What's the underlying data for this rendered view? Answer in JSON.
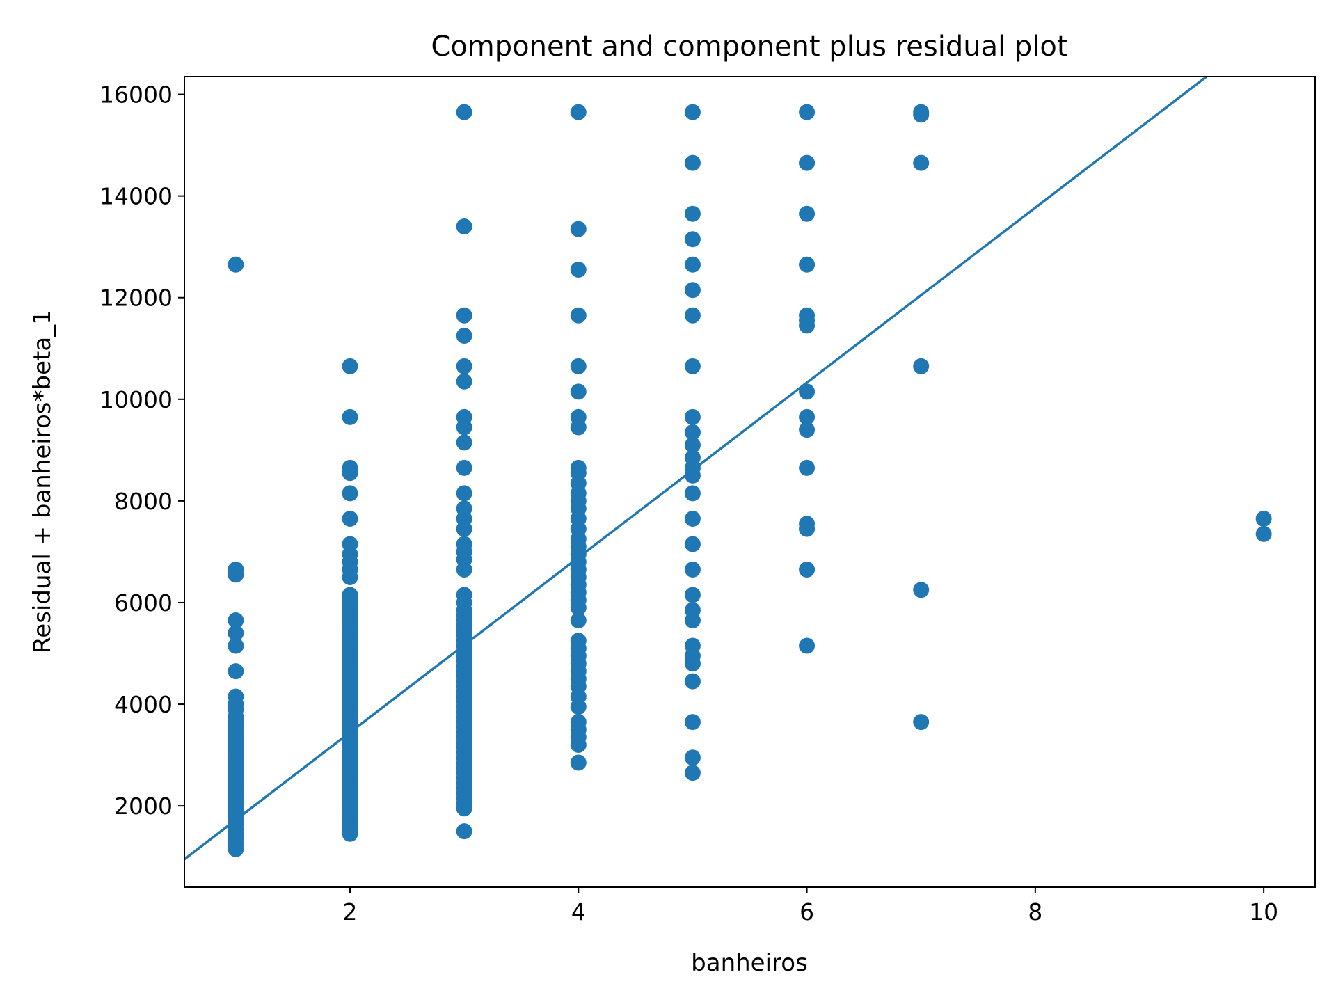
{
  "chart_data": {
    "type": "scatter",
    "title": "Component and component plus residual plot",
    "xlabel": "banheiros",
    "ylabel": "Residual + banheiros*beta_1",
    "xlim": [
      0.55,
      10.45
    ],
    "ylim": [
      400,
      16350
    ],
    "xticks": [
      2,
      4,
      6,
      8,
      10
    ],
    "yticks": [
      2000,
      4000,
      6000,
      8000,
      10000,
      12000,
      14000,
      16000
    ],
    "grid": false,
    "legend": "none",
    "colors": {
      "series": "#1f77b4",
      "axes": "#000000",
      "background": "#ffffff"
    },
    "series": [
      {
        "points": [
          [
            1,
            12650
          ],
          [
            1,
            6650
          ],
          [
            1,
            6550
          ],
          [
            1,
            5650
          ],
          [
            1,
            5400
          ],
          [
            1,
            5150
          ],
          [
            1,
            4650
          ],
          [
            1,
            4150
          ],
          [
            1,
            4000
          ],
          [
            1,
            3900
          ],
          [
            1,
            3750
          ],
          [
            1,
            3650
          ],
          [
            1,
            3550
          ],
          [
            1,
            3450
          ],
          [
            1,
            3350
          ],
          [
            1,
            3250
          ],
          [
            1,
            3150
          ],
          [
            1,
            3050
          ],
          [
            1,
            2950
          ],
          [
            1,
            2850
          ],
          [
            1,
            2750
          ],
          [
            1,
            2650
          ],
          [
            1,
            2550
          ],
          [
            1,
            2450
          ],
          [
            1,
            2350
          ],
          [
            1,
            2250
          ],
          [
            1,
            2150
          ],
          [
            1,
            2050
          ],
          [
            1,
            1950
          ],
          [
            1,
            1850
          ],
          [
            1,
            1750
          ],
          [
            1,
            1650
          ],
          [
            1,
            1550
          ],
          [
            1,
            1450
          ],
          [
            1,
            1350
          ],
          [
            1,
            1250
          ],
          [
            1,
            1150
          ],
          [
            2,
            10650
          ],
          [
            2,
            9650
          ],
          [
            2,
            8650
          ],
          [
            2,
            8550
          ],
          [
            2,
            8150
          ],
          [
            2,
            7650
          ],
          [
            2,
            7150
          ],
          [
            2,
            6950
          ],
          [
            2,
            6800
          ],
          [
            2,
            6650
          ],
          [
            2,
            6500
          ],
          [
            2,
            6150
          ],
          [
            2,
            6050
          ],
          [
            2,
            5950
          ],
          [
            2,
            5850
          ],
          [
            2,
            5750
          ],
          [
            2,
            5650
          ],
          [
            2,
            5550
          ],
          [
            2,
            5450
          ],
          [
            2,
            5350
          ],
          [
            2,
            5250
          ],
          [
            2,
            5150
          ],
          [
            2,
            5050
          ],
          [
            2,
            4950
          ],
          [
            2,
            4850
          ],
          [
            2,
            4750
          ],
          [
            2,
            4650
          ],
          [
            2,
            4550
          ],
          [
            2,
            4450
          ],
          [
            2,
            4350
          ],
          [
            2,
            4250
          ],
          [
            2,
            4150
          ],
          [
            2,
            4050
          ],
          [
            2,
            3950
          ],
          [
            2,
            3850
          ],
          [
            2,
            3750
          ],
          [
            2,
            3650
          ],
          [
            2,
            3550
          ],
          [
            2,
            3450
          ],
          [
            2,
            3350
          ],
          [
            2,
            3250
          ],
          [
            2,
            3150
          ],
          [
            2,
            3050
          ],
          [
            2,
            2950
          ],
          [
            2,
            2850
          ],
          [
            2,
            2750
          ],
          [
            2,
            2650
          ],
          [
            2,
            2550
          ],
          [
            2,
            2450
          ],
          [
            2,
            2350
          ],
          [
            2,
            2250
          ],
          [
            2,
            2150
          ],
          [
            2,
            2050
          ],
          [
            2,
            1950
          ],
          [
            2,
            1850
          ],
          [
            2,
            1750
          ],
          [
            2,
            1650
          ],
          [
            2,
            1550
          ],
          [
            2,
            1450
          ],
          [
            3,
            15650
          ],
          [
            3,
            13400
          ],
          [
            3,
            11650
          ],
          [
            3,
            11250
          ],
          [
            3,
            10650
          ],
          [
            3,
            10350
          ],
          [
            3,
            9650
          ],
          [
            3,
            9450
          ],
          [
            3,
            9150
          ],
          [
            3,
            8650
          ],
          [
            3,
            8150
          ],
          [
            3,
            7850
          ],
          [
            3,
            7650
          ],
          [
            3,
            7450
          ],
          [
            3,
            7150
          ],
          [
            3,
            7000
          ],
          [
            3,
            6850
          ],
          [
            3,
            6650
          ],
          [
            3,
            6150
          ],
          [
            3,
            6000
          ],
          [
            3,
            5850
          ],
          [
            3,
            5750
          ],
          [
            3,
            5650
          ],
          [
            3,
            5550
          ],
          [
            3,
            5450
          ],
          [
            3,
            5350
          ],
          [
            3,
            5250
          ],
          [
            3,
            5150
          ],
          [
            3,
            5050
          ],
          [
            3,
            4950
          ],
          [
            3,
            4850
          ],
          [
            3,
            4750
          ],
          [
            3,
            4650
          ],
          [
            3,
            4550
          ],
          [
            3,
            4450
          ],
          [
            3,
            4350
          ],
          [
            3,
            4250
          ],
          [
            3,
            4150
          ],
          [
            3,
            4050
          ],
          [
            3,
            3950
          ],
          [
            3,
            3850
          ],
          [
            3,
            3750
          ],
          [
            3,
            3650
          ],
          [
            3,
            3550
          ],
          [
            3,
            3450
          ],
          [
            3,
            3350
          ],
          [
            3,
            3250
          ],
          [
            3,
            3150
          ],
          [
            3,
            3050
          ],
          [
            3,
            2950
          ],
          [
            3,
            2850
          ],
          [
            3,
            2750
          ],
          [
            3,
            2650
          ],
          [
            3,
            2550
          ],
          [
            3,
            2450
          ],
          [
            3,
            2350
          ],
          [
            3,
            2250
          ],
          [
            3,
            2150
          ],
          [
            3,
            2050
          ],
          [
            3,
            1950
          ],
          [
            3,
            1500
          ],
          [
            4,
            15650
          ],
          [
            4,
            13350
          ],
          [
            4,
            12550
          ],
          [
            4,
            11650
          ],
          [
            4,
            10650
          ],
          [
            4,
            10150
          ],
          [
            4,
            9650
          ],
          [
            4,
            9450
          ],
          [
            4,
            8650
          ],
          [
            4,
            8550
          ],
          [
            4,
            8350
          ],
          [
            4,
            8150
          ],
          [
            4,
            8000
          ],
          [
            4,
            7850
          ],
          [
            4,
            7650
          ],
          [
            4,
            7450
          ],
          [
            4,
            7250
          ],
          [
            4,
            7100
          ],
          [
            4,
            6950
          ],
          [
            4,
            6800
          ],
          [
            4,
            6650
          ],
          [
            4,
            6500
          ],
          [
            4,
            6350
          ],
          [
            4,
            6200
          ],
          [
            4,
            6050
          ],
          [
            4,
            5900
          ],
          [
            4,
            5650
          ],
          [
            4,
            5250
          ],
          [
            4,
            5100
          ],
          [
            4,
            4950
          ],
          [
            4,
            4800
          ],
          [
            4,
            4650
          ],
          [
            4,
            4500
          ],
          [
            4,
            4350
          ],
          [
            4,
            4150
          ],
          [
            4,
            3950
          ],
          [
            4,
            3650
          ],
          [
            4,
            3500
          ],
          [
            4,
            3350
          ],
          [
            4,
            3200
          ],
          [
            4,
            2850
          ],
          [
            5,
            15650
          ],
          [
            5,
            14650
          ],
          [
            5,
            13650
          ],
          [
            5,
            13150
          ],
          [
            5,
            12650
          ],
          [
            5,
            12150
          ],
          [
            5,
            11650
          ],
          [
            5,
            10650
          ],
          [
            5,
            9650
          ],
          [
            5,
            9350
          ],
          [
            5,
            9100
          ],
          [
            5,
            8850
          ],
          [
            5,
            8650
          ],
          [
            5,
            8500
          ],
          [
            5,
            8150
          ],
          [
            5,
            7650
          ],
          [
            5,
            7150
          ],
          [
            5,
            6650
          ],
          [
            5,
            6150
          ],
          [
            5,
            5850
          ],
          [
            5,
            5650
          ],
          [
            5,
            5150
          ],
          [
            5,
            4950
          ],
          [
            5,
            4800
          ],
          [
            5,
            4450
          ],
          [
            5,
            3650
          ],
          [
            5,
            2950
          ],
          [
            5,
            2650
          ],
          [
            6,
            15650
          ],
          [
            6,
            14650
          ],
          [
            6,
            13650
          ],
          [
            6,
            12650
          ],
          [
            6,
            11650
          ],
          [
            6,
            11550
          ],
          [
            6,
            11450
          ],
          [
            6,
            10150
          ],
          [
            6,
            9650
          ],
          [
            6,
            9400
          ],
          [
            6,
            8650
          ],
          [
            6,
            7550
          ],
          [
            6,
            7450
          ],
          [
            6,
            6650
          ],
          [
            6,
            5150
          ],
          [
            7,
            15650
          ],
          [
            7,
            15600
          ],
          [
            7,
            14650
          ],
          [
            7,
            10650
          ],
          [
            7,
            6250
          ],
          [
            7,
            3650
          ],
          [
            10,
            7650
          ],
          [
            10,
            7350
          ]
        ]
      }
    ],
    "fit_line": {
      "x": [
        0.55,
        9.5
      ],
      "y": [
        950,
        16350
      ]
    }
  }
}
